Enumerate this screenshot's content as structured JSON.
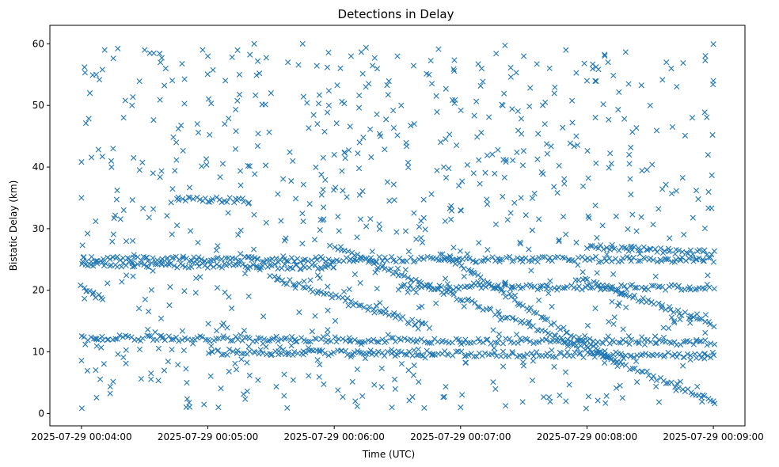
{
  "chart_data": {
    "type": "scatter",
    "title": "Detections in Delay",
    "xlabel": "Time (UTC)",
    "ylabel": "Bistatic Delay (km)",
    "marker": "x",
    "color": "#1f77b4",
    "grid": false,
    "legend": "none",
    "xlim": [
      "2025-07-29 00:03:45",
      "2025-07-29 00:09:15"
    ],
    "ylim": [
      -2,
      63
    ],
    "x_ticks": [
      "2025-07-29 00:04:00",
      "2025-07-29 00:05:00",
      "2025-07-29 00:06:00",
      "2025-07-29 00:07:00",
      "2025-07-29 00:08:00",
      "2025-07-29 00:09:00"
    ],
    "y_ticks": [
      0,
      10,
      20,
      30,
      40,
      50,
      60
    ],
    "time_range": [
      "2025-07-29 00:04:00",
      "2025-07-29 00:09:00"
    ],
    "tracks": [
      {
        "from": [
          "2025-07-29 00:04:00",
          25.0
        ],
        "to": [
          "2025-07-29 00:09:00",
          25.0
        ]
      },
      {
        "from": [
          "2025-07-29 00:04:00",
          24.3
        ],
        "to": [
          "2025-07-29 00:06:00",
          23.8
        ]
      },
      {
        "from": [
          "2025-07-29 00:04:00",
          12.3
        ],
        "to": [
          "2025-07-29 00:09:00",
          11.5
        ]
      },
      {
        "from": [
          "2025-07-29 00:05:00",
          10.0
        ],
        "to": [
          "2025-07-29 00:09:00",
          9.4
        ]
      },
      {
        "from": [
          "2025-07-29 00:04:00",
          20.5
        ],
        "to": [
          "2025-07-29 00:04:10",
          18.5
        ]
      },
      {
        "from": [
          "2025-07-29 00:05:30",
          22.3
        ],
        "to": [
          "2025-07-29 00:06:45",
          14.0
        ]
      },
      {
        "from": [
          "2025-07-29 00:06:50",
          26.1
        ],
        "to": [
          "2025-07-29 00:08:15",
          8.0
        ]
      },
      {
        "from": [
          "2025-07-29 00:06:00",
          27.0
        ],
        "to": [
          "2025-07-29 00:09:00",
          2.0
        ]
      },
      {
        "from": [
          "2025-07-29 00:07:55",
          22.0
        ],
        "to": [
          "2025-07-29 00:09:00",
          14.5
        ]
      },
      {
        "from": [
          "2025-07-29 00:04:45",
          34.8
        ],
        "to": [
          "2025-07-29 00:05:20",
          34.5
        ]
      },
      {
        "from": [
          "2025-07-29 00:06:30",
          20.5
        ],
        "to": [
          "2025-07-29 00:09:00",
          20.5
        ]
      },
      {
        "from": [
          "2025-07-29 00:08:00",
          27.0
        ],
        "to": [
          "2025-07-29 00:09:00",
          26.0
        ]
      }
    ],
    "scatter_points": [
      [
        "2025-07-29 00:04:00",
        35
      ],
      [
        "2025-07-29 00:04:04",
        52
      ],
      [
        "2025-07-29 00:04:07",
        55
      ],
      [
        "2025-07-29 00:04:11",
        59
      ],
      [
        "2025-07-29 00:04:15",
        43
      ],
      [
        "2025-07-29 00:04:20",
        48
      ],
      [
        "2025-07-29 00:04:24",
        50
      ],
      [
        "2025-07-29 00:04:30",
        59
      ],
      [
        "2025-07-29 00:04:34",
        39
      ],
      [
        "2025-07-29 00:04:40",
        56
      ],
      [
        "2025-07-29 00:04:45",
        44
      ],
      [
        "2025-07-29 00:04:50",
        5
      ],
      [
        "2025-07-29 00:04:55",
        47
      ],
      [
        "2025-07-29 00:05:00",
        58
      ],
      [
        "2025-07-29 00:05:08",
        47
      ],
      [
        "2025-07-29 00:05:15",
        55
      ],
      [
        "2025-07-29 00:05:22",
        60
      ],
      [
        "2025-07-29 00:05:30",
        52
      ],
      [
        "2025-07-29 00:05:38",
        57
      ],
      [
        "2025-07-29 00:05:45",
        60
      ],
      [
        "2025-07-29 00:05:52",
        47
      ],
      [
        "2025-07-29 00:06:00",
        42
      ],
      [
        "2025-07-29 00:06:08",
        58
      ],
      [
        "2025-07-29 00:06:15",
        53
      ],
      [
        "2025-07-29 00:06:22",
        45
      ],
      [
        "2025-07-29 00:06:30",
        58
      ],
      [
        "2025-07-29 00:06:38",
        47
      ],
      [
        "2025-07-29 00:06:45",
        55
      ],
      [
        "2025-07-29 00:06:52",
        40
      ],
      [
        "2025-07-29 00:07:00",
        33
      ],
      [
        "2025-07-29 00:07:10",
        56
      ],
      [
        "2025-07-29 00:07:20",
        50
      ],
      [
        "2025-07-29 00:07:30",
        58
      ],
      [
        "2025-07-29 00:07:40",
        47
      ],
      [
        "2025-07-29 00:07:50",
        59
      ],
      [
        "2025-07-29 00:08:00",
        54
      ],
      [
        "2025-07-29 00:08:10",
        57
      ],
      [
        "2025-07-29 00:08:20",
        42
      ],
      [
        "2025-07-29 00:08:30",
        50
      ],
      [
        "2025-07-29 00:08:40",
        56
      ],
      [
        "2025-07-29 00:08:50",
        48
      ],
      [
        "2025-07-29 00:09:00",
        54
      ],
      [
        "2025-07-29 00:09:00",
        2
      ],
      [
        "2025-07-29 00:08:55",
        3
      ],
      [
        "2025-07-29 00:05:05",
        1
      ],
      [
        "2025-07-29 00:06:10",
        2
      ],
      [
        "2025-07-29 00:07:00",
        1
      ],
      [
        "2025-07-29 00:07:50",
        2
      ]
    ]
  }
}
